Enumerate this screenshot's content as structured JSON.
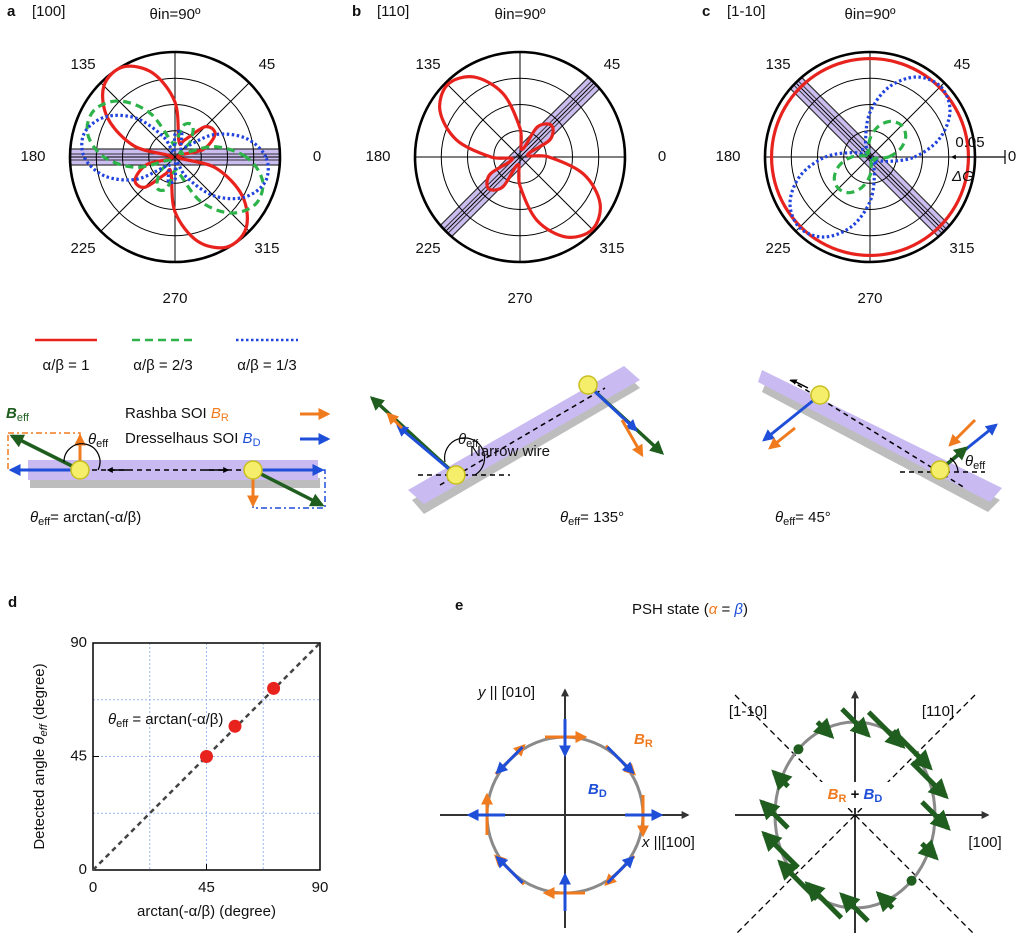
{
  "chart_data": [
    {
      "type": "polar",
      "panel": "a",
      "direction_label": "[100]",
      "theta": [
        0,
        15,
        30,
        45,
        60,
        75,
        90,
        105,
        120,
        135,
        150,
        165,
        180,
        195,
        210,
        225,
        240,
        255,
        270,
        285,
        300,
        315,
        330,
        345
      ],
      "rlim": [
        0,
        4
      ],
      "rticks": [
        1,
        2,
        3,
        4
      ],
      "thetaticks": [
        0,
        45,
        {
          "value": 90,
          "label": "θin=90º"
        },
        135,
        180,
        225,
        270,
        315
      ],
      "legend": true,
      "series": [
        {
          "name": "α/β = 1",
          "color": "#e8231e",
          "style": "solid",
          "values": [
            0.11,
            1.12,
            1.76,
            1.63,
            0.76,
            0.6,
            2.09,
            3.32,
            3.96,
            3.83,
            2.96,
            1.6,
            0.11,
            1.12,
            1.76,
            1.63,
            0.76,
            0.6,
            2.09,
            3.32,
            3.96,
            3.83,
            2.96,
            1.6
          ]
        },
        {
          "name": "α/β = 2/3",
          "color": "#2db34a",
          "style": "dashed",
          "values": [
            2.71,
            1.53,
            0.25,
            0.82,
            1.36,
            1.25,
            0.51,
            0.67,
            1.96,
            3.02,
            3.56,
            3.45,
            2.71,
            1.53,
            0.25,
            0.82,
            1.36,
            1.25,
            0.51,
            0.67,
            1.96,
            3.02,
            3.56,
            3.45
          ]
        },
        {
          "name": "α/β = 1/3",
          "color": "#2244dd",
          "style": "dotted",
          "values": [
            3.46,
            2.78,
            1.7,
            0.51,
            0.46,
            0.97,
            0.86,
            0.18,
            0.9,
            2.09,
            3.06,
            3.57,
            3.46,
            2.78,
            1.7,
            0.51,
            0.46,
            0.97,
            0.86,
            0.18,
            0.9,
            2.09,
            3.06,
            3.57
          ]
        }
      ]
    },
    {
      "type": "polar",
      "panel": "b",
      "direction_label": "[110]",
      "theta": [
        0,
        15,
        30,
        45,
        60,
        75,
        90,
        105,
        120,
        135,
        150,
        165,
        180,
        195,
        210,
        225,
        240,
        255,
        270,
        285,
        300,
        315,
        330,
        345
      ],
      "rlim": [
        0,
        4
      ],
      "rticks": [
        1,
        2,
        3,
        4
      ],
      "thetaticks": [
        0,
        45,
        {
          "value": 90,
          "label": "θin=90º"
        },
        135,
        180,
        225,
        270,
        315
      ],
      "series": [
        {
          "color": "#e8231e",
          "style": "solid",
          "values": [
            1.1,
            0.3,
            1.32,
            1.7,
            1.32,
            0.3,
            1.1,
            2.5,
            3.52,
            3.9,
            3.52,
            2.5,
            1.1,
            0.3,
            1.32,
            1.7,
            1.32,
            0.3,
            1.1,
            2.5,
            3.52,
            3.9,
            3.52,
            2.5
          ]
        }
      ]
    },
    {
      "type": "polar",
      "panel": "c",
      "direction_label": "[1-10]",
      "theta": [
        0,
        15,
        30,
        45,
        60,
        75,
        90,
        105,
        120,
        135,
        150,
        165,
        180,
        195,
        210,
        225,
        240,
        255,
        270,
        285,
        300,
        315,
        330,
        345
      ],
      "rlim": [
        0,
        4
      ],
      "rticks": [
        1,
        2,
        3,
        4
      ],
      "thetaticks": [
        0,
        45,
        {
          "value": 90,
          "label": "θin=90º"
        },
        135,
        180,
        225,
        270,
        315
      ],
      "annotations": [
        "0.05",
        "ΔG"
      ],
      "series": [
        {
          "color": "#e8231e",
          "style": "solid",
          "values": [
            3.75,
            3.75,
            3.75,
            3.75,
            3.75,
            3.75,
            3.75,
            3.75,
            3.75,
            3.75,
            3.75,
            3.75,
            3.75,
            3.75,
            3.75,
            3.75,
            3.75,
            3.75,
            3.75,
            3.75,
            3.75,
            3.75,
            3.75,
            3.75
          ]
        },
        {
          "color": "#2244dd",
          "style": "dotted",
          "values": [
            1.7,
            2.75,
            3.52,
            3.8,
            3.52,
            2.75,
            1.7,
            0.65,
            0.12,
            0.4,
            0.12,
            0.65,
            1.7,
            2.75,
            3.52,
            3.8,
            3.52,
            2.75,
            1.7,
            0.65,
            0.12,
            0.4,
            0.12,
            0.65
          ]
        },
        {
          "color": "#2db34a",
          "style": "dashed",
          "values": [
            0.7,
            1.2,
            1.57,
            1.7,
            1.57,
            1.2,
            0.7,
            0.2,
            0.17,
            0.3,
            0.17,
            0.2,
            0.7,
            1.2,
            1.57,
            1.7,
            1.57,
            1.2,
            0.7,
            0.2,
            0.17,
            0.3,
            0.17,
            0.2
          ]
        }
      ]
    },
    {
      "type": "scatter",
      "panel": "d",
      "x": [
        45,
        56.3,
        71.6
      ],
      "values": [
        45,
        57,
        72
      ],
      "color": "#e8231e",
      "xlim": [
        0,
        90
      ],
      "ylim": [
        0,
        90
      ],
      "xticks": [
        0,
        45,
        90
      ],
      "yticks": [
        0,
        45,
        90
      ],
      "minor_ticks": [
        22.5,
        67.5
      ],
      "grid": true,
      "xlabel": "arctan(-α/β) (degree)",
      "ylabel": [
        "Detected angle ",
        "θ",
        "eff",
        " (degree)"
      ],
      "annotation": [
        "θ",
        "eff",
        " = arctan(-α/β)"
      ]
    }
  ],
  "wires": {
    "rashba": [
      "Rashba SOI ",
      "B",
      "R"
    ],
    "dresselhaus": [
      "Dresselhaus SOI ",
      "B",
      "D"
    ],
    "beff": [
      "B",
      "eff"
    ],
    "theta_a": [
      "θ",
      "eff"
    ],
    "formula": [
      "θ",
      "eff",
      "= arctan(-α/β)"
    ],
    "narrow_wire": "Narrow wire",
    "theta_b": [
      "θ",
      "eff"
    ],
    "result_b": [
      "θ",
      "eff",
      "= 135°"
    ],
    "theta_c": [
      "θ",
      "eff"
    ],
    "result_c": [
      "θ",
      "eff",
      "= 45°"
    ]
  },
  "psh": {
    "panel": "e",
    "title": [
      "PSH state (",
      "α",
      " = ",
      "β",
      ")"
    ],
    "y_axis": [
      "y",
      " || [010]"
    ],
    "x_axis": [
      "x",
      " ||[100]"
    ],
    "br": [
      "B",
      "R"
    ],
    "bd": [
      "B",
      "D"
    ],
    "dir_1m10": "[1-10]",
    "dir_110": "[110]",
    "dir_100": "[100]",
    "sum": [
      "B",
      "R",
      " + ",
      "B",
      "D"
    ]
  }
}
